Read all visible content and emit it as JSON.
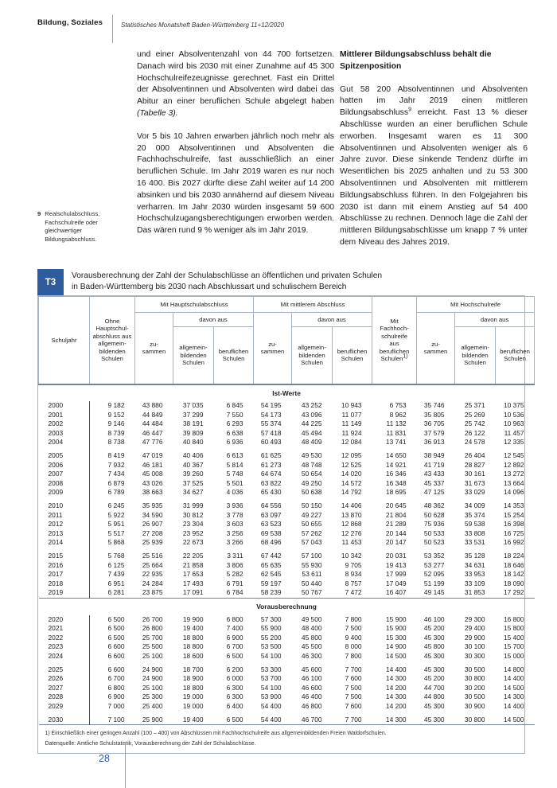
{
  "page": {
    "section_label": "Bildung, Soziales",
    "journal": "Statistisches Monatsheft Baden-Württemberg 11+12/2020",
    "page_number": "28",
    "accent_blue": "#2d5b9d"
  },
  "margin_note": {
    "marker": "9",
    "text": "Realschulabschluss, Fachschulreife oder gleichwertiger Bildungsabschluss."
  },
  "left_column": {
    "para1": "und einer Absolventenzahl von 44 700 fortsetzen. Danach wird bis 2030 mit einer Zunahme auf 45 300 Hochschulreifezeugnisse gerechnet. Fast ein Drittel der Absolventinnen und Absolventen wird dabei das Abitur an einer beruflichen Schule abgelegt haben ",
    "para1_italic": "(Tabelle 3).",
    "para2": "Vor 5 bis 10 Jahren erwarben jährlich noch mehr als 20 000 Absolventinnen und Absolventen die Fachhochschulreife, fast ausschließlich an einer beruflichen Schule. Im Jahr 2019 waren es nur noch 16 400. Bis 2027 dürfte diese Zahl weiter auf 14 200 absinken und bis 2030 annähernd auf diesem Niveau verharren. Im Jahr 2030 würden insgesamt 59 600 Hochschulzugangsberechtigungen erworben werden. Das wären rund 9 % weniger als im Jahr 2019."
  },
  "right_column": {
    "heading": "Mittlerer Bildungsabschluss behält die Spitzenposition",
    "para1_pre": "Gut 58 200 Absolventinnen und Absolventen hatten im Jahr 2019 einen mittleren Bildungsabschluss",
    "para1_sup": "9",
    "para1_post": " erreicht. Fast 13 % dieser Abschlüsse wurden an einer beruflichen Schule erworben. Insgesamt waren es 11 300 Absolventinnen und Absolventen weniger als 6 Jahre zuvor. Diese sinkende Tendenz dürfte im Wesentlichen bis 2025 anhalten und zu 53 300 Absolventinnen und Absolventen mit mittlerem Bildungsabschluss führen. In den Folgejahren bis 2030 ist dann mit einem Anstieg auf 54 400 Abschlüsse zu rechnen. Dennoch läge die Zahl der mittleren Bildungsabschlüsse um knapp 7 % unter dem Niveau des Jahres 2019."
  },
  "table": {
    "badge": "T3",
    "title_line1": "Vorausberechnung der Zahl der Schulabschlüsse an öffentlichen und privaten Schulen",
    "title_line2": "in Baden-Württemberg bis 2030 nach Abschlussart und schulischem Bereich",
    "header": {
      "schuljahr": "Schuljahr",
      "ohne": "Ohne\nHauptschul-\nabschluss aus\nallgemein-\nbildenden\nSchulen",
      "group_haupt": "Mit Hauptschulabschluss",
      "group_mittel": "Mit mittlerem Abschluss",
      "group_hoch": "Mit Hochschulreife",
      "fhr": "Mit\nFachhoch-\nschulreife\naus\nberuflichen\nSchulen",
      "fhr_sup": "1)",
      "zusammen": "zu-\nsammen",
      "davon": "davon aus",
      "allgemein": "allgemein-\nbildenden\nSchulen",
      "beruflich": "beruflichen\nSchulen"
    },
    "sections": [
      {
        "label": "Ist-Werte",
        "gaps_after": [
          "2004",
          "2009",
          "2014"
        ],
        "rows": [
          [
            "2000",
            "9 182",
            "43 880",
            "37 035",
            "6 845",
            "54 195",
            "43 252",
            "10 943",
            "6 753",
            "35 746",
            "25 371",
            "10 375"
          ],
          [
            "2001",
            "9 152",
            "44 849",
            "37 299",
            "7 550",
            "54 173",
            "43 096",
            "11 077",
            "8 962",
            "35 805",
            "25 269",
            "10 536"
          ],
          [
            "2002",
            "9 146",
            "44 484",
            "38 191",
            "6 293",
            "55 374",
            "44 225",
            "11 149",
            "11 132",
            "36 705",
            "25 742",
            "10 963"
          ],
          [
            "2003",
            "8 739",
            "46 447",
            "39 809",
            "6 638",
            "57 418",
            "45 494",
            "11 924",
            "11 831",
            "37 579",
            "26 122",
            "11 457"
          ],
          [
            "2004",
            "8 738",
            "47 776",
            "40 840",
            "6 936",
            "60 493",
            "48 409",
            "12 084",
            "13 741",
            "36 913",
            "24 578",
            "12 335"
          ],
          [
            "2005",
            "8 419",
            "47 019",
            "40 406",
            "6 613",
            "61 625",
            "49 530",
            "12 095",
            "14 650",
            "38 949",
            "26 404",
            "12 545"
          ],
          [
            "2006",
            "7 932",
            "46 181",
            "40 367",
            "5 814",
            "61 273",
            "48 748",
            "12 525",
            "14 921",
            "41 719",
            "28 827",
            "12 892"
          ],
          [
            "2007",
            "7 434",
            "45 008",
            "39 260",
            "5 748",
            "64 674",
            "50 654",
            "14 020",
            "16 346",
            "43 433",
            "30 161",
            "13 272"
          ],
          [
            "2008",
            "6 879",
            "43 026",
            "37 525",
            "5 501",
            "63 822",
            "49 250",
            "14 572",
            "16 348",
            "45 337",
            "31 673",
            "13 664"
          ],
          [
            "2009",
            "6 789",
            "38 663",
            "34 627",
            "4 036",
            "65 430",
            "50 638",
            "14 792",
            "18 695",
            "47 125",
            "33 029",
            "14 096"
          ],
          [
            "2010",
            "6 245",
            "35 935",
            "31 999",
            "3 936",
            "64 556",
            "50 150",
            "14 406",
            "20 645",
            "48 362",
            "34 009",
            "14 353"
          ],
          [
            "2011",
            "5 922",
            "34 590",
            "30 812",
            "3 778",
            "63 097",
            "49 227",
            "13 870",
            "21 804",
            "50 628",
            "35 374",
            "15 254"
          ],
          [
            "2012",
            "5 951",
            "26 907",
            "23 304",
            "3 603",
            "63 523",
            "50 655",
            "12 868",
            "21 289",
            "75 936",
            "59 538",
            "16 398"
          ],
          [
            "2013",
            "5 517",
            "27 208",
            "23 952",
            "3 256",
            "69 538",
            "57 262",
            "12 276",
            "20 144",
            "50 533",
            "33 808",
            "16 725"
          ],
          [
            "2014",
            "5 868",
            "25 939",
            "22 673",
            "3 266",
            "68 496",
            "57 043",
            "11 453",
            "20 147",
            "50 523",
            "33 531",
            "16 992"
          ],
          [
            "2015",
            "5 768",
            "25 516",
            "22 205",
            "3 311",
            "67 442",
            "57 100",
            "10 342",
            "20 031",
            "53 352",
            "35 128",
            "18 224"
          ],
          [
            "2016",
            "6 125",
            "25 664",
            "21 858",
            "3 806",
            "65 635",
            "55 930",
            "9 705",
            "19 413",
            "53 277",
            "34 631",
            "18 646"
          ],
          [
            "2017",
            "7 439",
            "22 935",
            "17 653",
            "5 282",
            "62 545",
            "53 611",
            "8 934",
            "17 999",
            "52 095",
            "33 953",
            "18 142"
          ],
          [
            "2018",
            "6 951",
            "24 284",
            "17 493",
            "6 791",
            "59 197",
            "50 440",
            "8 757",
            "17 049",
            "51 199",
            "33 109",
            "18 090"
          ],
          [
            "2019",
            "6 281",
            "23 875",
            "17 091",
            "6 784",
            "58 239",
            "50 767",
            "7 472",
            "16 407",
            "49 145",
            "31 853",
            "17 292"
          ]
        ]
      },
      {
        "label": "Vorausberechnung",
        "gaps_after": [
          "2024",
          "2029"
        ],
        "rows": [
          [
            "2020",
            "6 500",
            "26 700",
            "19 900",
            "6 800",
            "57 300",
            "49 500",
            "7 800",
            "15 900",
            "46 100",
            "29 300",
            "16 800"
          ],
          [
            "2021",
            "6 500",
            "26 800",
            "19 400",
            "7 400",
            "55 900",
            "48 400",
            "7 500",
            "15 900",
            "45 200",
            "29 400",
            "15 800"
          ],
          [
            "2022",
            "6 500",
            "25 700",
            "18 800",
            "6 900",
            "55 200",
            "45 800",
            "9 400",
            "15 300",
            "45 300",
            "29 900",
            "15 400"
          ],
          [
            "2023",
            "6 600",
            "25 500",
            "18 800",
            "6 700",
            "53 500",
            "45 500",
            "8 000",
            "14 900",
            "45 800",
            "30 100",
            "15 700"
          ],
          [
            "2024",
            "6 600",
            "25 100",
            "18 600",
            "6 500",
            "54 100",
            "46 300",
            "7 800",
            "14 500",
            "45 300",
            "30 300",
            "15 000"
          ],
          [
            "2025",
            "6 600",
            "24 900",
            "18 700",
            "6 200",
            "53 300",
            "45 600",
            "7 700",
            "14 400",
            "45 300",
            "30 500",
            "14 800"
          ],
          [
            "2026",
            "6 700",
            "24 900",
            "18 900",
            "6 000",
            "53 700",
            "46 100",
            "7 600",
            "14 300",
            "45 200",
            "30 800",
            "14 400"
          ],
          [
            "2027",
            "6 800",
            "25 100",
            "18 800",
            "6 300",
            "54 100",
            "46 600",
            "7 500",
            "14 200",
            "44 700",
            "30 200",
            "14 500"
          ],
          [
            "2028",
            "6 900",
            "25 300",
            "19 000",
            "6 300",
            "53 900",
            "46 400",
            "7 500",
            "14 300",
            "44 800",
            "30 500",
            "14 300"
          ],
          [
            "2029",
            "7 000",
            "25 400",
            "19 000",
            "6 400",
            "54 400",
            "46 800",
            "7 600",
            "14 200",
            "45 300",
            "30 900",
            "14 400"
          ],
          [
            "2030",
            "7 100",
            "25 900",
            "19 400",
            "6 500",
            "54 400",
            "46 700",
            "7 700",
            "14 300",
            "45 300",
            "30 800",
            "14 500"
          ]
        ]
      }
    ],
    "footnote1": "1) Einschließlich einer geringen Anzahl (100 – 400) von Abschlüssen mit Fachhochschulreife aus allgemeinbildenden Freien Waldorfschulen.",
    "source": "Datenquelle: Amtliche Schulstatistik, Vorausberechnung der Zahl der Schulabschlüsse."
  }
}
